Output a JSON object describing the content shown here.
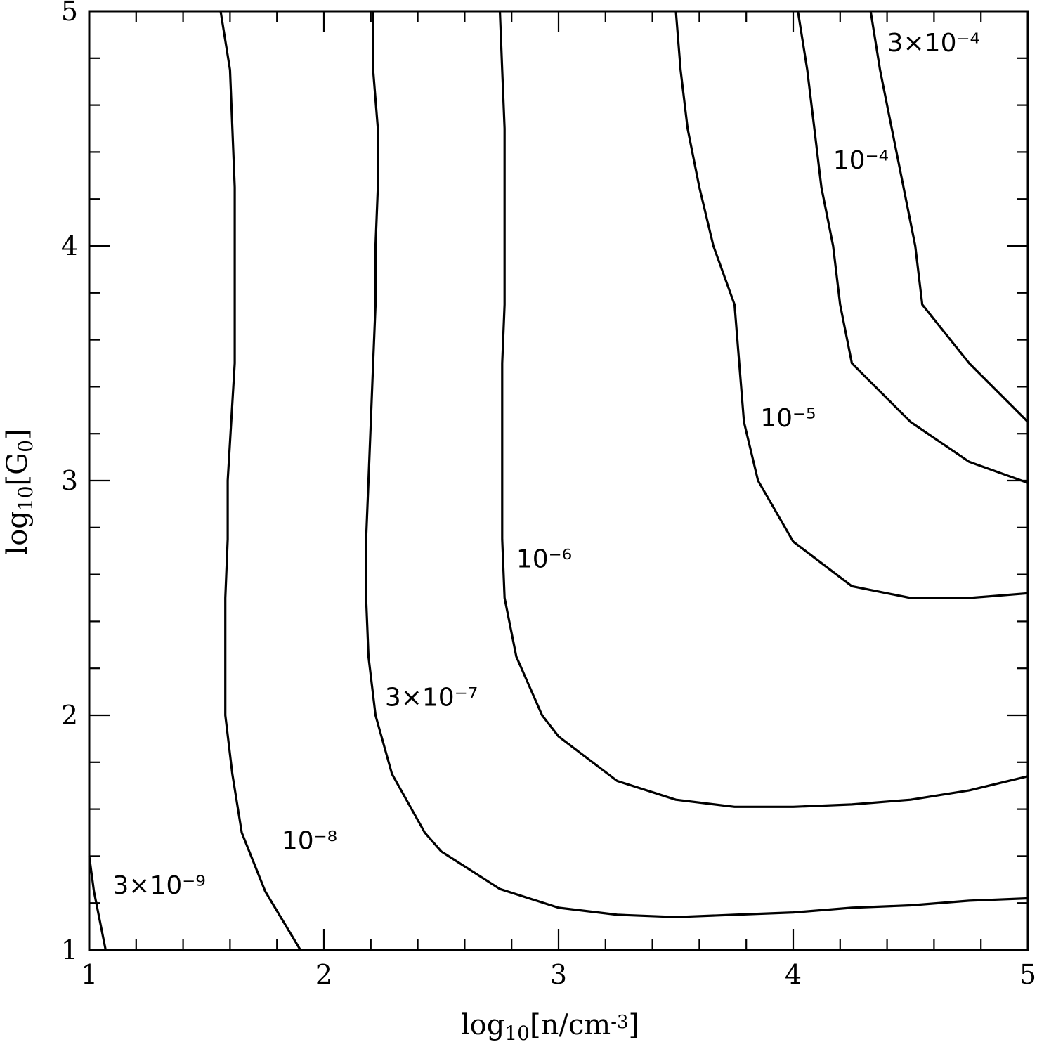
{
  "chart_data": {
    "type": "line",
    "xlabel": "log10[n/cm-3]",
    "ylabel": "log10[G0]",
    "xlim": [
      1,
      5
    ],
    "ylim": [
      1,
      5
    ],
    "x_ticks": [
      "1",
      "2",
      "3",
      "4",
      "5"
    ],
    "y_ticks": [
      "1",
      "2",
      "3",
      "4",
      "5"
    ],
    "grid": false,
    "series": [
      {
        "name": "3×10⁻⁹",
        "label_pos": [
          1.1,
          1.24
        ],
        "points": [
          [
            1.0,
            1.4
          ],
          [
            1.02,
            1.25
          ],
          [
            1.07,
            1.0
          ]
        ]
      },
      {
        "name": "10⁻⁸",
        "label_pos": [
          1.82,
          1.43
        ],
        "points": [
          [
            1.56,
            5.0
          ],
          [
            1.6,
            4.75
          ],
          [
            1.62,
            4.25
          ],
          [
            1.62,
            3.5
          ],
          [
            1.59,
            3.0
          ],
          [
            1.59,
            2.75
          ],
          [
            1.58,
            2.5
          ],
          [
            1.58,
            2.25
          ],
          [
            1.58,
            2.0
          ],
          [
            1.61,
            1.75
          ],
          [
            1.65,
            1.5
          ],
          [
            1.75,
            1.25
          ],
          [
            1.9,
            1.0
          ]
        ]
      },
      {
        "name": "3×10⁻⁷",
        "label_pos": [
          2.26,
          2.04
        ],
        "points": [
          [
            2.21,
            5.0
          ],
          [
            2.21,
            4.75
          ],
          [
            2.23,
            4.5
          ],
          [
            2.23,
            4.25
          ],
          [
            2.22,
            4.0
          ],
          [
            2.22,
            3.75
          ],
          [
            2.21,
            3.5
          ],
          [
            2.2,
            3.25
          ],
          [
            2.19,
            3.0
          ],
          [
            2.18,
            2.75
          ],
          [
            2.18,
            2.5
          ],
          [
            2.19,
            2.25
          ],
          [
            2.22,
            2.0
          ],
          [
            2.29,
            1.75
          ],
          [
            2.43,
            1.5
          ],
          [
            2.5,
            1.42
          ],
          [
            2.75,
            1.26
          ],
          [
            3.0,
            1.18
          ],
          [
            3.25,
            1.15
          ],
          [
            3.5,
            1.14
          ],
          [
            3.75,
            1.15
          ],
          [
            4.0,
            1.16
          ],
          [
            4.25,
            1.18
          ],
          [
            4.5,
            1.19
          ],
          [
            4.75,
            1.21
          ],
          [
            5.0,
            1.22
          ]
        ]
      },
      {
        "name": "10⁻⁶",
        "label_pos": [
          2.82,
          2.63
        ],
        "points": [
          [
            2.75,
            5.0
          ],
          [
            2.76,
            4.75
          ],
          [
            2.77,
            4.5
          ],
          [
            2.77,
            4.25
          ],
          [
            2.77,
            4.0
          ],
          [
            2.77,
            3.75
          ],
          [
            2.76,
            3.5
          ],
          [
            2.76,
            3.25
          ],
          [
            2.76,
            3.0
          ],
          [
            2.76,
            2.75
          ],
          [
            2.77,
            2.5
          ],
          [
            2.82,
            2.25
          ],
          [
            2.93,
            2.0
          ],
          [
            3.0,
            1.91
          ],
          [
            3.25,
            1.72
          ],
          [
            3.5,
            1.64
          ],
          [
            3.75,
            1.61
          ],
          [
            4.0,
            1.61
          ],
          [
            4.25,
            1.62
          ],
          [
            4.5,
            1.64
          ],
          [
            4.75,
            1.68
          ],
          [
            5.0,
            1.74
          ]
        ]
      },
      {
        "name": "10⁻⁵",
        "label_pos": [
          3.86,
          3.23
        ],
        "points": [
          [
            3.5,
            5.0
          ],
          [
            3.52,
            4.75
          ],
          [
            3.55,
            4.5
          ],
          [
            3.6,
            4.25
          ],
          [
            3.66,
            4.0
          ],
          [
            3.75,
            3.75
          ],
          [
            3.77,
            3.5
          ],
          [
            3.79,
            3.25
          ],
          [
            3.85,
            3.0
          ],
          [
            4.0,
            2.74
          ],
          [
            4.25,
            2.55
          ],
          [
            4.5,
            2.5
          ],
          [
            4.75,
            2.5
          ],
          [
            5.0,
            2.52
          ]
        ]
      },
      {
        "name": "10⁻⁴",
        "label_pos": [
          4.17,
          4.33
        ],
        "points": [
          [
            4.02,
            5.0
          ],
          [
            4.06,
            4.75
          ],
          [
            4.09,
            4.5
          ],
          [
            4.12,
            4.25
          ],
          [
            4.17,
            4.0
          ],
          [
            4.2,
            3.75
          ],
          [
            4.25,
            3.5
          ],
          [
            4.5,
            3.25
          ],
          [
            4.75,
            3.08
          ],
          [
            5.0,
            2.99
          ]
        ]
      },
      {
        "name": "3×10⁻⁴",
        "label_pos": [
          4.4,
          4.83
        ],
        "points": [
          [
            4.33,
            5.0
          ],
          [
            4.37,
            4.75
          ],
          [
            4.42,
            4.5
          ],
          [
            4.47,
            4.25
          ],
          [
            4.52,
            4.0
          ],
          [
            4.55,
            3.75
          ],
          [
            4.75,
            3.5
          ],
          [
            5.0,
            3.25
          ]
        ]
      }
    ]
  }
}
